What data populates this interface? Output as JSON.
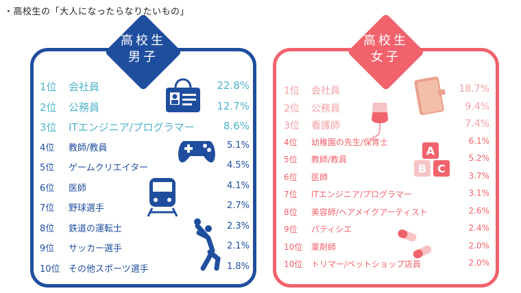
{
  "heading": "・高校生の「大人になったらなりたいもの」",
  "boys": {
    "badge_line1": "高校生",
    "badge_line2": "男子",
    "color": "#1f4e9e",
    "highlight_color": "#4fb3c8",
    "items": [
      {
        "rank": "1位",
        "job": "会社員",
        "pct": "22.8%"
      },
      {
        "rank": "2位",
        "job": "公務員",
        "pct": "12.7%"
      },
      {
        "rank": "3位",
        "job": "ITエンジニア/プログラマー",
        "pct": "8.6%"
      },
      {
        "rank": "4位",
        "job": "教師/教員",
        "pct": "5.1%"
      },
      {
        "rank": "5位",
        "job": "ゲームクリエイター",
        "pct": "4.5%"
      },
      {
        "rank": "6位",
        "job": "医師",
        "pct": "4.1%"
      },
      {
        "rank": "7位",
        "job": "野球選手",
        "pct": "2.7%"
      },
      {
        "rank": "8位",
        "job": "鉄道の運転士",
        "pct": "2.3%"
      },
      {
        "rank": "9位",
        "job": "サッカー選手",
        "pct": "2.1%"
      },
      {
        "rank": "10位",
        "job": "その他スポーツ選手",
        "pct": "1.8%"
      }
    ],
    "icons": [
      "id-badge-icon",
      "game-controller-icon",
      "train-icon",
      "basketball-player-icon"
    ]
  },
  "girls": {
    "badge_line1": "高校生",
    "badge_line2": "女子",
    "color": "#f0626c",
    "highlight_color": "#f2a0a5",
    "items": [
      {
        "rank": "1位",
        "job": "会社員",
        "pct": "18.7%"
      },
      {
        "rank": "2位",
        "job": "公務員",
        "pct": "9.4%"
      },
      {
        "rank": "3位",
        "job": "看護師",
        "pct": "7.4%"
      },
      {
        "rank": "4位",
        "job": "幼稚園の先生/保育士",
        "pct": "6.1%"
      },
      {
        "rank": "5位",
        "job": "教師/教員",
        "pct": "5.2%"
      },
      {
        "rank": "6位",
        "job": "医師",
        "pct": "3.7%"
      },
      {
        "rank": "7位",
        "job": "ITエンジニア/プログラマー",
        "pct": "3.1%"
      },
      {
        "rank": "8位",
        "job": "美容師/ヘアメイクアーティスト",
        "pct": "2.6%"
      },
      {
        "rank": "9位",
        "job": "パティシエ",
        "pct": "2.4%"
      },
      {
        "rank": "10位",
        "job": "薬剤師",
        "pct": "2.0%"
      },
      {
        "rank": "10位",
        "job": "トリマー/ペットショップ店員",
        "pct": "2.0%"
      }
    ],
    "icons": [
      "notebook-icon",
      "iv-drip-icon",
      "abc-blocks-icon",
      "pill-capsules-icon"
    ]
  }
}
